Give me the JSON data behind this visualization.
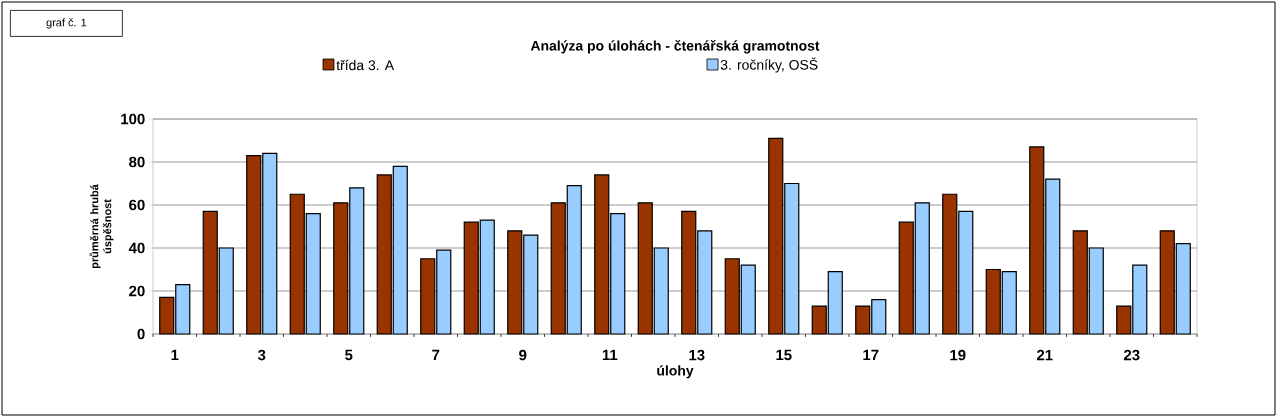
{
  "chart_data": {
    "type": "bar",
    "title": "Analýza po úlohách - čtenářská gramotnost",
    "xlabel": "úlohy",
    "ylabel": "průměrná hrubá úspěšnost",
    "annotations": [
      "graf č. 1"
    ],
    "categories": [
      "1",
      null,
      "3",
      null,
      "5",
      null,
      "7",
      null,
      "9",
      null,
      "11",
      null,
      "13",
      null,
      "15",
      null,
      "17",
      null,
      "19",
      null,
      "21",
      null,
      "23",
      null
    ],
    "series": [
      {
        "name": "třída  3. A",
        "color": "#993300",
        "values": [
          17,
          57,
          83,
          65,
          61,
          74,
          35,
          52,
          48,
          61,
          74,
          61,
          57,
          35,
          91,
          13,
          13,
          52,
          65,
          30,
          87,
          48,
          13,
          48
        ]
      },
      {
        "name": "3. ročníky, OSŠ",
        "color": "#99ccff",
        "values": [
          23,
          40,
          84,
          56,
          68,
          78,
          39,
          53,
          46,
          69,
          56,
          40,
          48,
          32,
          70,
          29,
          16,
          61,
          57,
          29,
          72,
          40,
          32,
          42
        ]
      }
    ],
    "ylim": [
      0,
      100
    ],
    "yticks": [
      0,
      20,
      40,
      60,
      80,
      100
    ],
    "grid": "y",
    "legend": "top"
  }
}
